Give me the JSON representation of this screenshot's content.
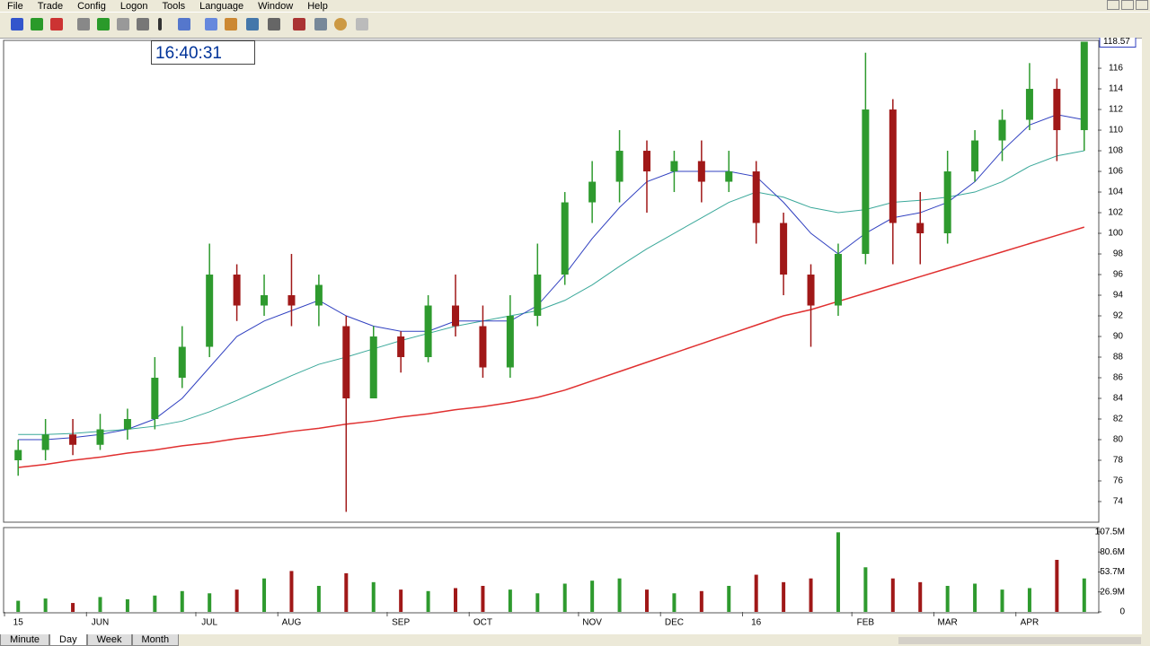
{
  "menu": [
    "File",
    "Trade",
    "Config",
    "Logon",
    "Tools",
    "Language",
    "Window",
    "Help"
  ],
  "clock": "16:40:31",
  "tabs": [
    "Minute",
    "Day",
    "Week",
    "Month"
  ],
  "chart_data": {
    "type": "candlestick",
    "categories": [
      "15",
      null,
      null,
      "JUN",
      null,
      null,
      null,
      "JUL",
      null,
      null,
      "AUG",
      null,
      null,
      null,
      "SEP",
      null,
      null,
      "OCT",
      null,
      null,
      null,
      "NOV",
      null,
      null,
      "DEC",
      null,
      null,
      "16",
      null,
      null,
      null,
      "FEB",
      null,
      null,
      "MAR",
      null,
      null,
      "APR",
      null,
      null
    ],
    "open": [
      78,
      79,
      80.5,
      79.5,
      81,
      82,
      86,
      89,
      96,
      93,
      94,
      93,
      91,
      84,
      90,
      88,
      93,
      91,
      87,
      92,
      96,
      103,
      105,
      108,
      106,
      107,
      105,
      106,
      101,
      96,
      93,
      98,
      112,
      101,
      100,
      106,
      109,
      111,
      114,
      110
    ],
    "high": [
      80,
      82,
      82,
      82.5,
      83,
      88,
      91,
      99,
      97,
      96,
      98,
      96,
      92,
      91,
      90.5,
      94,
      96,
      93,
      94,
      99,
      104,
      107,
      110,
      109,
      108,
      109,
      108,
      107,
      102,
      97,
      99,
      117.5,
      113,
      104,
      108,
      110,
      112,
      116.5,
      115,
      118.57
    ],
    "low": [
      76.5,
      78,
      78.5,
      79,
      80,
      81,
      85,
      88,
      91.5,
      92,
      91,
      91,
      73,
      84,
      86.5,
      87.5,
      90,
      86,
      86,
      91,
      95,
      101,
      103,
      102,
      104,
      103,
      104,
      99,
      94,
      89,
      92,
      97,
      97,
      97,
      99,
      105,
      107,
      110,
      107,
      108
    ],
    "close": [
      79,
      80.5,
      79.5,
      81,
      82,
      86,
      89,
      96,
      93,
      94,
      93,
      95,
      84,
      90,
      88,
      93,
      91,
      87,
      92,
      96,
      103,
      105,
      108,
      106,
      107,
      105,
      106,
      101,
      96,
      93,
      98,
      112,
      101,
      100,
      106,
      109,
      111,
      114,
      110,
      118.57
    ],
    "up_color": "#2e9a2e",
    "down_color": "#a01818",
    "series": [
      {
        "color": "#e03030",
        "values": [
          77.3,
          77.6,
          78,
          78.3,
          78.7,
          79,
          79.4,
          79.7,
          80.1,
          80.4,
          80.8,
          81.1,
          81.5,
          81.8,
          82.2,
          82.5,
          82.9,
          83.2,
          83.6,
          84.1,
          84.8,
          85.7,
          86.6,
          87.5,
          88.4,
          89.3,
          90.2,
          91.1,
          92,
          92.6,
          93.4,
          94.2,
          95,
          95.8,
          96.6,
          97.4,
          98.2,
          99,
          99.8,
          100.6
        ]
      },
      {
        "color": "#3aa89a",
        "values": [
          80.5,
          80.5,
          80.6,
          80.8,
          81,
          81.3,
          81.8,
          82.7,
          83.8,
          85,
          86.2,
          87.3,
          88,
          88.8,
          89.6,
          90.3,
          91,
          91.5,
          92,
          92.5,
          93.5,
          95,
          96.8,
          98.5,
          100,
          101.5,
          103,
          104,
          103.5,
          102.5,
          102,
          102.3,
          103,
          103.2,
          103.5,
          104,
          105,
          106.5,
          107.5,
          108
        ]
      },
      {
        "color": "#3040c0",
        "values": [
          80,
          80,
          80.2,
          80.5,
          81,
          82,
          84,
          87,
          90,
          91.5,
          92.5,
          93.5,
          92,
          91,
          90.5,
          90.5,
          91.5,
          91.5,
          91.5,
          93,
          96,
          99.5,
          102.5,
          105,
          106,
          106,
          106,
          105.5,
          103,
          100,
          98,
          100,
          101.5,
          102,
          103,
          105,
          108,
          110.5,
          111.5,
          111
        ]
      }
    ],
    "ylim": [
      72,
      118.7
    ],
    "yticks": [
      74,
      76,
      78,
      80,
      82,
      84,
      86,
      88,
      90,
      92,
      94,
      96,
      98,
      100,
      102,
      104,
      106,
      108,
      110,
      112,
      114,
      116
    ],
    "last_label": "118.57",
    "volume": [
      15,
      18,
      12,
      20,
      17,
      22,
      28,
      25,
      30,
      45,
      55,
      35,
      52,
      40,
      30,
      28,
      32,
      35,
      30,
      25,
      38,
      42,
      45,
      30,
      25,
      28,
      35,
      50,
      40,
      45,
      107,
      60,
      45,
      40,
      35,
      38,
      30,
      32,
      70,
      45
    ],
    "volume_ylim": [
      0,
      111
    ],
    "volume_yticks": [
      0,
      {
        "value": 26.9,
        "label": "26.9M"
      },
      {
        "value": 53.7,
        "label": "53.7M"
      },
      {
        "value": 80.6,
        "label": "80.6M"
      },
      {
        "value": 107.5,
        "label": "107.5M"
      }
    ]
  }
}
